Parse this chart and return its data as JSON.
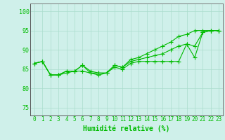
{
  "xlabel": "Humidité relative (%)",
  "background_color": "#cff0ea",
  "grid_color": "#aaddcc",
  "line_color": "#00bb00",
  "xlim": [
    -0.5,
    23.5
  ],
  "ylim": [
    73,
    102
  ],
  "yticks": [
    75,
    80,
    85,
    90,
    95,
    100
  ],
  "xticks": [
    0,
    1,
    2,
    3,
    4,
    5,
    6,
    7,
    8,
    9,
    10,
    11,
    12,
    13,
    14,
    15,
    16,
    17,
    18,
    19,
    20,
    21,
    22,
    23
  ],
  "line1_x": [
    0,
    1,
    2,
    3,
    4,
    5,
    6,
    7,
    8,
    9,
    10,
    11,
    12,
    13,
    14,
    15,
    16,
    17,
    18,
    19,
    20,
    21,
    22,
    23
  ],
  "line1_y": [
    86.5,
    87.0,
    83.5,
    83.5,
    84.0,
    84.5,
    84.5,
    84.0,
    83.5,
    84.0,
    85.5,
    85.0,
    86.5,
    87.0,
    87.0,
    87.0,
    87.0,
    87.0,
    87.0,
    91.5,
    88.0,
    94.5,
    95.0,
    95.0
  ],
  "line2_x": [
    0,
    1,
    2,
    3,
    4,
    5,
    6,
    7,
    8,
    9,
    10,
    11,
    12,
    13,
    14,
    15,
    16,
    17,
    18,
    19,
    20,
    21,
    22,
    23
  ],
  "line2_y": [
    86.5,
    87.0,
    83.5,
    83.5,
    84.5,
    84.5,
    86.0,
    84.0,
    84.0,
    84.0,
    86.0,
    85.5,
    87.0,
    87.5,
    88.0,
    88.5,
    89.0,
    90.0,
    91.0,
    91.5,
    91.0,
    94.5,
    95.0,
    95.0
  ],
  "line3_x": [
    0,
    1,
    2,
    3,
    4,
    5,
    6,
    7,
    8,
    9,
    10,
    11,
    12,
    13,
    14,
    15,
    16,
    17,
    18,
    19,
    20,
    21,
    22,
    23
  ],
  "line3_y": [
    86.5,
    87.0,
    83.5,
    83.5,
    84.5,
    84.5,
    86.0,
    84.5,
    84.0,
    84.0,
    86.0,
    85.5,
    87.5,
    88.0,
    89.0,
    90.0,
    91.0,
    92.0,
    93.5,
    94.0,
    95.0,
    95.0,
    95.0,
    95.0
  ],
  "marker": "+",
  "markersize": 4,
  "linewidth": 0.8,
  "xlabel_fontsize": 7,
  "tick_fontsize": 5.5,
  "ytick_fontsize": 6
}
